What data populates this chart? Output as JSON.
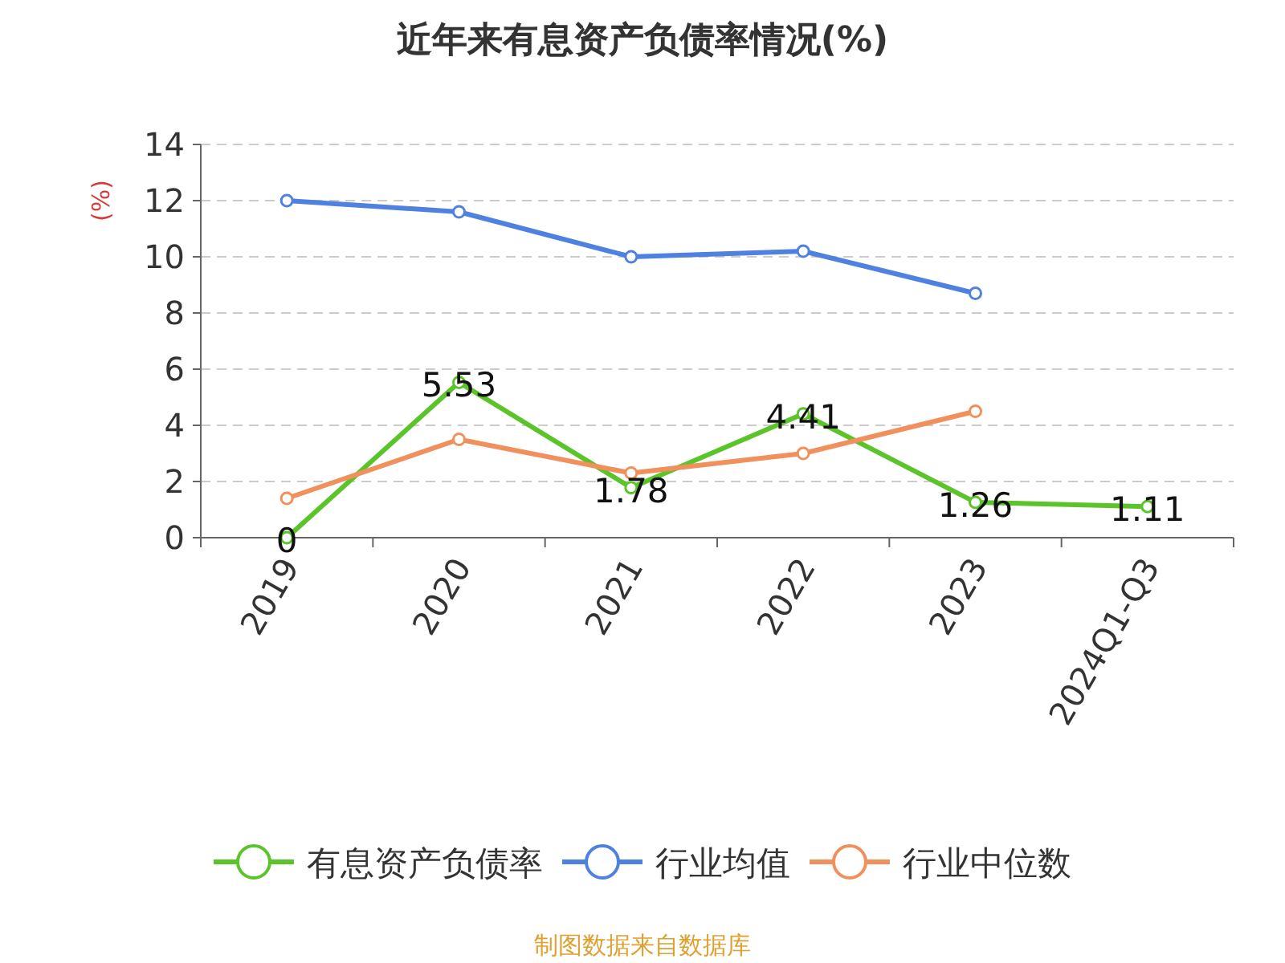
{
  "chart_data": {
    "type": "line",
    "title": "近年来有息资产负债率情况(%)",
    "ylabel": "(%)",
    "categories": [
      "2019",
      "2020",
      "2021",
      "2022",
      "2023",
      "2024Q1-Q3"
    ],
    "series": [
      {
        "name": "有息资产负债率",
        "color": "#5cc42b",
        "values": [
          0,
          5.53,
          1.78,
          4.41,
          1.26,
          1.11
        ],
        "value_labels": [
          "0",
          "5.53",
          "1.78",
          "4.41",
          "1.26",
          "1.11"
        ]
      },
      {
        "name": "行业均值",
        "color": "#4f81e0",
        "values": [
          12.0,
          11.6,
          10.0,
          10.2,
          8.7,
          null
        ]
      },
      {
        "name": "行业中位数",
        "color": "#f0905c",
        "values": [
          1.4,
          3.5,
          2.3,
          3.0,
          4.5,
          null
        ]
      }
    ],
    "ylim": [
      0,
      14
    ],
    "yticks": [
      0,
      2,
      4,
      6,
      8,
      10,
      12,
      14
    ],
    "grid": "y",
    "legend": "bottom",
    "marker": "circle",
    "line_style": "solid",
    "annotations": [
      "制图数据来自数据库"
    ]
  }
}
